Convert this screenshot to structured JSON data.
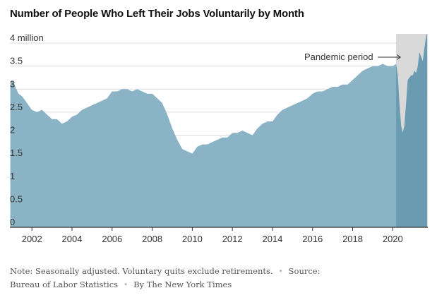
{
  "title": "Number of People Who Left Their Jobs Voluntarily by Month",
  "colors": {
    "area": "#8ab4c6",
    "area_pandemic": "#6a9bb0",
    "shade": "#d9d9d9",
    "grid": "#dddddd",
    "axis": "#333333",
    "text": "#333333"
  },
  "annotation": {
    "label": "Pandemic period"
  },
  "note": {
    "text": "Note: Seasonally adjusted. Voluntary quits exclude retirements.",
    "source": "Source: Bureau of Labor Statistics",
    "byline": "By The New York Times",
    "separator": "•"
  },
  "chart_data": {
    "type": "area",
    "title": "Number of People Who Left Their Jobs Voluntarily by Month",
    "xlabel": "",
    "ylabel": "",
    "ylim": [
      0,
      4.2
    ],
    "xlim": [
      2000.9,
      2021.75
    ],
    "y_ticks": [
      0,
      0.5,
      1,
      1.5,
      2,
      2.5,
      3,
      3.5,
      4
    ],
    "y_tick_labels": [
      "0",
      "0.5",
      "1",
      "1.5",
      "2",
      "2.5",
      "3",
      "3.5",
      "4 million"
    ],
    "x_ticks": [
      2002,
      2004,
      2006,
      2008,
      2010,
      2012,
      2014,
      2016,
      2018,
      2020
    ],
    "x_tick_labels": [
      "2002",
      "2004",
      "2006",
      "2008",
      "2010",
      "2012",
      "2014",
      "2016",
      "2018",
      "2020"
    ],
    "grid": true,
    "shaded_region": {
      "label": "Pandemic period",
      "x": [
        2020.17,
        2021.75
      ]
    },
    "series": [
      {
        "x": [
          2000.92,
          2001.0,
          2001.17,
          2001.33,
          2001.5,
          2001.67,
          2001.83,
          2002.0,
          2002.25,
          2002.5,
          2002.75,
          2003.0,
          2003.25,
          2003.5,
          2003.75,
          2004.0,
          2004.25,
          2004.5,
          2004.75,
          2005.0,
          2005.25,
          2005.5,
          2005.75,
          2006.0,
          2006.25,
          2006.5,
          2006.75,
          2007.0,
          2007.25,
          2007.5,
          2007.75,
          2008.0,
          2008.25,
          2008.5,
          2008.75,
          2009.0,
          2009.25,
          2009.5,
          2009.75,
          2010.0,
          2010.25,
          2010.5,
          2010.75,
          2011.0,
          2011.25,
          2011.5,
          2011.75,
          2012.0,
          2012.25,
          2012.5,
          2012.75,
          2013.0,
          2013.25,
          2013.5,
          2013.75,
          2014.0,
          2014.25,
          2014.5,
          2014.75,
          2015.0,
          2015.25,
          2015.5,
          2015.75,
          2016.0,
          2016.25,
          2016.5,
          2016.75,
          2017.0,
          2017.25,
          2017.5,
          2017.75,
          2018.0,
          2018.25,
          2018.5,
          2018.75,
          2019.0,
          2019.25,
          2019.5,
          2019.75,
          2020.0,
          2020.17,
          2020.25,
          2020.33,
          2020.42,
          2020.5,
          2020.58,
          2020.67,
          2020.75,
          2020.83,
          2020.92,
          2021.0,
          2021.08,
          2021.17,
          2021.25,
          2021.33,
          2021.42,
          2021.5,
          2021.58,
          2021.67,
          2021.71
        ],
        "values": [
          3.1,
          3.2,
          3.05,
          2.9,
          2.85,
          2.75,
          2.65,
          2.55,
          2.5,
          2.55,
          2.45,
          2.35,
          2.35,
          2.25,
          2.3,
          2.4,
          2.45,
          2.55,
          2.6,
          2.65,
          2.7,
          2.75,
          2.8,
          2.95,
          2.95,
          3.0,
          3.0,
          2.95,
          3.0,
          2.95,
          2.9,
          2.9,
          2.8,
          2.7,
          2.45,
          2.15,
          1.9,
          1.7,
          1.65,
          1.6,
          1.75,
          1.8,
          1.8,
          1.85,
          1.9,
          1.95,
          1.95,
          2.05,
          2.05,
          2.1,
          2.05,
          2.0,
          2.15,
          2.25,
          2.3,
          2.3,
          2.45,
          2.55,
          2.6,
          2.65,
          2.7,
          2.75,
          2.8,
          2.9,
          2.95,
          2.95,
          3.0,
          3.05,
          3.05,
          3.1,
          3.1,
          3.2,
          3.3,
          3.4,
          3.45,
          3.5,
          3.5,
          3.55,
          3.5,
          3.5,
          3.55,
          3.3,
          2.7,
          2.2,
          2.05,
          2.2,
          2.7,
          3.2,
          3.25,
          3.3,
          3.3,
          3.4,
          3.35,
          3.5,
          3.8,
          3.7,
          3.6,
          3.9,
          4.15,
          4.2
        ]
      }
    ]
  }
}
